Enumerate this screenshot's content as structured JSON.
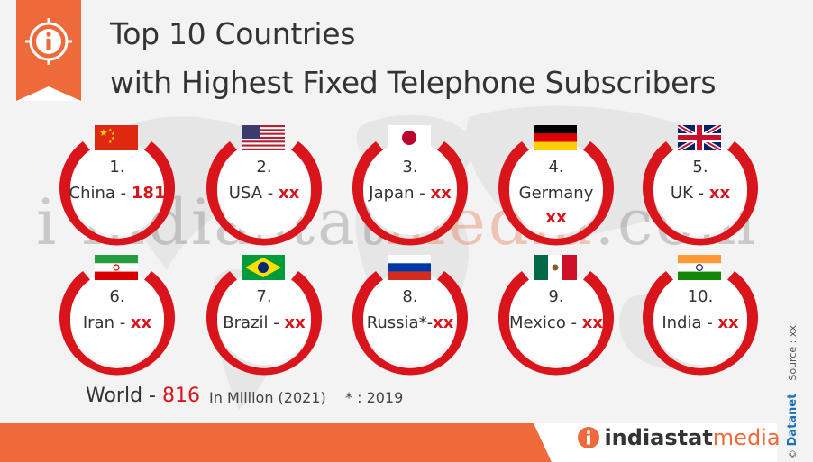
{
  "title": {
    "line1": "Top 10 Countries",
    "line2": "with Highest Fixed Telephone Subscribers"
  },
  "watermark": {
    "part1": "i",
    "part2": "indiastat",
    "part3": "media",
    "part4": ".com"
  },
  "countries": [
    {
      "rank": "1.",
      "name": "China - ",
      "value": "181",
      "flag": "china"
    },
    {
      "rank": "2.",
      "name": "USA - ",
      "value": "xx",
      "flag": "usa"
    },
    {
      "rank": "3.",
      "name": "Japan - ",
      "value": "xx",
      "flag": "japan"
    },
    {
      "rank": "4.",
      "name": "Germany",
      "value": "xx",
      "flag": "germany"
    },
    {
      "rank": "5.",
      "name": "UK - ",
      "value": "xx",
      "flag": "uk"
    },
    {
      "rank": "6.",
      "name": "Iran - ",
      "value": "xx",
      "flag": "iran"
    },
    {
      "rank": "7.",
      "name": "Brazil - ",
      "value": "xx",
      "flag": "brazil"
    },
    {
      "rank": "8.",
      "name": "Russia*-",
      "value": "xx",
      "flag": "russia"
    },
    {
      "rank": "9.",
      "name": "Mexico - ",
      "value": "xx",
      "flag": "mexico"
    },
    {
      "rank": "10.",
      "name": "India - ",
      "value": "xx",
      "flag": "india"
    }
  ],
  "footer": {
    "world_label": "World - ",
    "world_value": "816",
    "unit": "In Million (2021)",
    "note": "* : 2019"
  },
  "brand": {
    "name_part1": "indiastat",
    "name_part2": "media"
  },
  "side": {
    "copyright": "©",
    "datanet": "Datanet",
    "source": "Source : xx"
  },
  "colors": {
    "accent": "#ee6a3a",
    "ring_red": "#d9141b",
    "value_red": "#d9141b"
  }
}
